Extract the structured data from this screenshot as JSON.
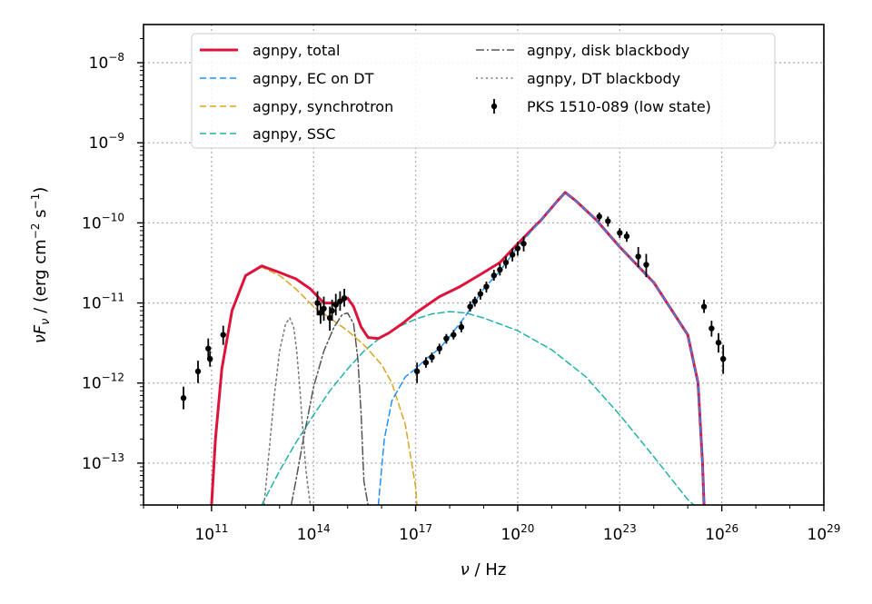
{
  "chart_data": {
    "type": "line",
    "x_scale": "log",
    "y_scale": "log",
    "xlabel": "ν / Hz",
    "ylabel": "νF_ν / (erg cm^-2 s^-1)",
    "xlim": [
      1000000000.0,
      1e+29
    ],
    "ylim": [
      3e-14,
      3e-08
    ],
    "grid": true,
    "legend_placement": "top",
    "x_ticks": [
      {
        "value": 100000000000.0,
        "base": "10",
        "exp": "11"
      },
      {
        "value": 100000000000000.0,
        "base": "10",
        "exp": "14"
      },
      {
        "value": 1e+17,
        "base": "10",
        "exp": "17"
      },
      {
        "value": 1e+20,
        "base": "10",
        "exp": "20"
      },
      {
        "value": 1e+23,
        "base": "10",
        "exp": "23"
      },
      {
        "value": 1e+26,
        "base": "10",
        "exp": "26"
      },
      {
        "value": 1e+29,
        "base": "10",
        "exp": "29"
      }
    ],
    "y_ticks": [
      {
        "value": 1e-13,
        "base": "10",
        "exp": "−13"
      },
      {
        "value": 1e-12,
        "base": "10",
        "exp": "−12"
      },
      {
        "value": 1e-11,
        "base": "10",
        "exp": "−11"
      },
      {
        "value": 1e-10,
        "base": "10",
        "exp": "−10"
      },
      {
        "value": 1e-09,
        "base": "10",
        "exp": "−9"
      },
      {
        "value": 1e-08,
        "base": "10",
        "exp": "−8"
      }
    ],
    "series": [
      {
        "name": "agnpy, total",
        "color": "#dc143c",
        "style": "solid",
        "width": 3,
        "x": [
          100000000000.0,
          130000000000.0,
          200000000000.0,
          400000000000.0,
          1000000000000.0,
          3000000000000.0,
          10000000000000.0,
          30000000000000.0,
          80000000000000.0,
          200000000000000.0,
          500000000000000.0,
          1000000000000000.0,
          1500000000000000.0,
          2500000000000000.0,
          4000000000000000.0,
          8000000000000000.0,
          1.6e+16,
          4e+16,
          1e+17,
          5e+17,
          2e+18,
          1e+19,
          3e+19,
          1e+20,
          5e+20,
          1.5e+21,
          2.5e+21,
          5e+21,
          2e+22,
          1e+23,
          1e+24,
          1e+25,
          2e+25,
          2.7e+25,
          3e+25,
          3.2e+25
        ],
        "y": [
          3e-14,
          2e-13,
          1.5e-12,
          8e-12,
          2.2e-11,
          2.9e-11,
          2.4e-11,
          2e-11,
          1.5e-11,
          1e-11,
          1e-11,
          1.15e-11,
          9e-12,
          5e-12,
          3.7e-12,
          3.6e-12,
          4.2e-12,
          5.5e-12,
          7.5e-12,
          1.2e-11,
          1.6e-11,
          2.4e-11,
          3.2e-11,
          5.5e-11,
          1.1e-10,
          1.9e-10,
          2.4e-10,
          1.9e-10,
          1.1e-10,
          5e-11,
          1.8e-11,
          4e-12,
          1e-12,
          1e-13,
          3e-14,
          1e-14
        ]
      },
      {
        "name": "agnpy, EC on DT",
        "color": "#1e90ff",
        "style": "dashed",
        "width": 1.5,
        "x": [
          8000000000000000.0,
          1.2e+16,
          2e+16,
          5e+16,
          1e+17,
          2e+17,
          5e+17,
          1e+18,
          3e+18,
          1e+19,
          3e+19,
          1e+20,
          5e+20,
          1.5e+21,
          2.5e+21,
          5e+21,
          2e+22,
          1e+23,
          1e+24,
          1e+25,
          2e+25,
          2.7e+25,
          3e+25,
          3.2e+25
        ],
        "y": [
          3e-14,
          2e-13,
          6e-13,
          1.2e-12,
          1.5e-12,
          2e-12,
          2.7e-12,
          3.8e-12,
          7e-12,
          1.5e-11,
          2.5e-11,
          5e-11,
          1.1e-10,
          1.9e-10,
          2.4e-10,
          1.9e-10,
          1.1e-10,
          5e-11,
          1.8e-11,
          4e-12,
          1e-12,
          1e-13,
          3e-14,
          1e-14
        ]
      },
      {
        "name": "agnpy, synchrotron",
        "color": "#daa520",
        "style": "dashed",
        "width": 1.5,
        "x": [
          100000000000.0,
          130000000000.0,
          200000000000.0,
          400000000000.0,
          1000000000000.0,
          3000000000000.0,
          10000000000000.0,
          30000000000000.0,
          100000000000000.0,
          300000000000000.0,
          1000000000000000.0,
          3000000000000000.0,
          1e+16,
          2e+16,
          5e+16,
          1e+17,
          1.3e+17
        ],
        "y": [
          3e-14,
          2e-13,
          1.5e-12,
          8e-12,
          2.2e-11,
          2.8e-11,
          2.2e-11,
          1.5e-11,
          9e-12,
          6.5e-12,
          4.5e-12,
          3e-12,
          1.7e-12,
          1e-12,
          3e-13,
          5e-14,
          1e-14
        ]
      },
      {
        "name": "agnpy, SSC",
        "color": "#20b2aa",
        "style": "dashed",
        "width": 1.5,
        "x": [
          3000000000000.0,
          10000000000000.0,
          30000000000000.0,
          100000000000000.0,
          300000000000000.0,
          1000000000000000.0,
          3000000000000000.0,
          1e+16,
          3e+16,
          1e+17,
          3e+17,
          1e+18,
          3e+18,
          1e+19,
          1e+20,
          1e+21,
          1e+22,
          1e+23,
          1e+24,
          1e+25,
          1.5e+25
        ],
        "y": [
          3e-14,
          8e-14,
          1.8e-13,
          4e-13,
          8e-13,
          1.5e-12,
          2.5e-12,
          3.8e-12,
          5e-12,
          6.3e-12,
          7.3e-12,
          7.8e-12,
          7.5e-12,
          6.5e-12,
          4.5e-12,
          2.6e-12,
          1.2e-12,
          4e-13,
          1.2e-13,
          3.5e-14,
          3e-14
        ]
      },
      {
        "name": "agnpy, disk blackbody",
        "color": "#555555",
        "style": "dashdot",
        "width": 1.5,
        "x": [
          22000000000000.0,
          30000000000000.0,
          50000000000000.0,
          100000000000000.0,
          200000000000000.0,
          400000000000000.0,
          700000000000000.0,
          1000000000000000.0,
          1500000000000000.0,
          2000000000000000.0,
          2500000000000000.0,
          3000000000000000.0,
          4000000000000000.0
        ],
        "y": [
          3e-14,
          6e-14,
          2e-13,
          9e-13,
          2.5e-12,
          5e-12,
          7.2e-12,
          7.5e-12,
          5.5e-12,
          2e-12,
          4e-13,
          6e-14,
          3e-14
        ]
      },
      {
        "name": "agnpy, DT blackbody",
        "color": "#777777",
        "style": "dotted",
        "width": 1.5,
        "x": [
          3500000000000.0,
          5000000000000.0,
          7000000000000.0,
          10000000000000.0,
          15000000000000.0,
          20000000000000.0,
          26000000000000.0,
          32000000000000.0,
          40000000000000.0,
          50000000000000.0,
          60000000000000.0,
          80000000000000.0
        ],
        "y": [
          3e-14,
          1.5e-13,
          7e-13,
          2.5e-12,
          5.5e-12,
          6.5e-12,
          5e-12,
          2.5e-12,
          8e-13,
          2e-13,
          8e-14,
          3e-14
        ]
      }
    ],
    "points": {
      "name": "PKS 1510-089 (low state)",
      "color": "#000000",
      "data": [
        {
          "x": 15000000000.0,
          "y": 6.5e-13,
          "ylo": 4.7e-13,
          "yhi": 9e-13
        },
        {
          "x": 40000000000.0,
          "y": 1.4e-12,
          "ylo": 1e-12,
          "yhi": 1.9e-12
        },
        {
          "x": 80000000000.0,
          "y": 2.7e-12,
          "ylo": 2e-12,
          "yhi": 3.6e-12
        },
        {
          "x": 90000000000.0,
          "y": 2e-12,
          "ylo": 1.6e-12,
          "yhi": 2.5e-12
        },
        {
          "x": 220000000000.0,
          "y": 4e-12,
          "ylo": 3e-12,
          "yhi": 5.2e-12
        },
        {
          "x": 130000000000000.0,
          "y": 1e-11,
          "ylo": 7e-12,
          "yhi": 1.4e-11
        },
        {
          "x": 160000000000000.0,
          "y": 7.5e-12,
          "ylo": 5.5e-12,
          "yhi": 1e-11
        },
        {
          "x": 200000000000000.0,
          "y": 8.5e-12,
          "ylo": 6e-12,
          "yhi": 1.2e-11
        },
        {
          "x": 300000000000000.0,
          "y": 6.5e-12,
          "ylo": 4.5e-12,
          "yhi": 9e-12
        },
        {
          "x": 350000000000000.0,
          "y": 8e-12,
          "ylo": 6e-12,
          "yhi": 1.1e-11
        },
        {
          "x": 450000000000000.0,
          "y": 9.5e-12,
          "ylo": 7e-12,
          "yhi": 1.3e-11
        },
        {
          "x": 600000000000000.0,
          "y": 1.05e-11,
          "ylo": 8e-12,
          "yhi": 1.4e-11
        },
        {
          "x": 800000000000000.0,
          "y": 1.15e-11,
          "ylo": 9e-12,
          "yhi": 1.5e-11
        },
        {
          "x": 1.1e+17,
          "y": 1.4e-12,
          "ylo": 1e-12,
          "yhi": 1.8e-12
        },
        {
          "x": 2e+17,
          "y": 1.8e-12,
          "ylo": 1.55e-12,
          "yhi": 2.1e-12
        },
        {
          "x": 3e+17,
          "y": 2.1e-12,
          "ylo": 1.8e-12,
          "yhi": 2.4e-12
        },
        {
          "x": 5e+17,
          "y": 2.7e-12,
          "ylo": 2.3e-12,
          "yhi": 3.1e-12
        },
        {
          "x": 8e+17,
          "y": 3.6e-12,
          "ylo": 3.1e-12,
          "yhi": 4.1e-12
        },
        {
          "x": 1.3e+18,
          "y": 4e-12,
          "ylo": 3.5e-12,
          "yhi": 4.6e-12
        },
        {
          "x": 2.2e+18,
          "y": 5e-12,
          "ylo": 4.3e-12,
          "yhi": 5.8e-12
        },
        {
          "x": 4e+18,
          "y": 9e-12,
          "ylo": 7.8e-12,
          "yhi": 1.05e-11
        },
        {
          "x": 5.5e+18,
          "y": 1.05e-11,
          "ylo": 9e-12,
          "yhi": 1.2e-11
        },
        {
          "x": 8e+18,
          "y": 1.3e-11,
          "ylo": 1.1e-11,
          "yhi": 1.5e-11
        },
        {
          "x": 1.2e+19,
          "y": 1.6e-11,
          "ylo": 1.35e-11,
          "yhi": 1.85e-11
        },
        {
          "x": 2e+19,
          "y": 2.2e-11,
          "ylo": 1.9e-11,
          "yhi": 2.6e-11
        },
        {
          "x": 3e+19,
          "y": 2.6e-11,
          "ylo": 2.2e-11,
          "yhi": 3.1e-11
        },
        {
          "x": 4.5e+19,
          "y": 3.2e-11,
          "ylo": 2.7e-11,
          "yhi": 3.8e-11
        },
        {
          "x": 7e+19,
          "y": 4e-11,
          "ylo": 3.3e-11,
          "yhi": 4.8e-11
        },
        {
          "x": 1e+20,
          "y": 4.8e-11,
          "ylo": 3.9e-11,
          "yhi": 5.8e-11
        },
        {
          "x": 1.5e+20,
          "y": 5.5e-11,
          "ylo": 4.4e-11,
          "yhi": 6.8e-11
        },
        {
          "x": 2.5e+22,
          "y": 1.2e-10,
          "ylo": 1.05e-10,
          "yhi": 1.35e-10
        },
        {
          "x": 4.5e+22,
          "y": 1.05e-10,
          "ylo": 9e-11,
          "yhi": 1.2e-10
        },
        {
          "x": 1e+23,
          "y": 7.5e-11,
          "ylo": 6.5e-11,
          "yhi": 8.6e-11
        },
        {
          "x": 1.6e+23,
          "y": 6.8e-11,
          "ylo": 5.8e-11,
          "yhi": 7.8e-11
        },
        {
          "x": 3.5e+23,
          "y": 3.8e-11,
          "ylo": 2.8e-11,
          "yhi": 5e-11
        },
        {
          "x": 6e+23,
          "y": 3e-11,
          "ylo": 2.1e-11,
          "yhi": 4.1e-11
        },
        {
          "x": 3e+25,
          "y": 9e-12,
          "ylo": 7.5e-12,
          "yhi": 1.1e-11
        },
        {
          "x": 5e+25,
          "y": 4.8e-12,
          "ylo": 3.8e-12,
          "yhi": 6e-12
        },
        {
          "x": 8e+25,
          "y": 3.2e-12,
          "ylo": 2.4e-12,
          "yhi": 4.2e-12
        },
        {
          "x": 1.1e+26,
          "y": 2e-12,
          "ylo": 1.3e-12,
          "yhi": 3e-12
        }
      ]
    },
    "legend": {
      "items": [
        {
          "label": "agnpy, total",
          "series": 0
        },
        {
          "label": "agnpy, EC on DT",
          "series": 1
        },
        {
          "label": "agnpy, synchrotron",
          "series": 2
        },
        {
          "label": "agnpy, SSC",
          "series": 3
        },
        {
          "label": "agnpy, disk blackbody",
          "series": 4
        },
        {
          "label": "agnpy, DT blackbody",
          "series": 5
        },
        {
          "label": "PKS 1510-089 (low state)",
          "series": "points"
        }
      ]
    }
  }
}
